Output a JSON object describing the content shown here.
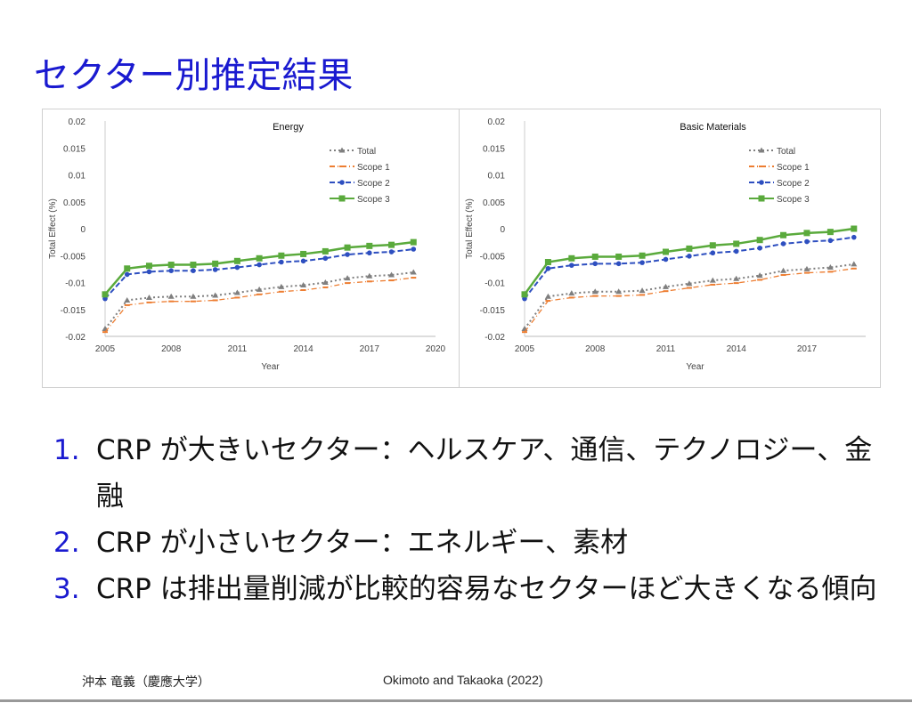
{
  "title": "セクター別推定結果",
  "chart_data": [
    {
      "type": "line",
      "title": "Energy",
      "xlabel": "Year",
      "ylabel": "Total Effect (%)",
      "xlim": [
        2005,
        2020
      ],
      "ylim": [
        -0.02,
        0.02
      ],
      "xticks": [
        "2005",
        "2008",
        "2011",
        "2014",
        "2017",
        "2020"
      ],
      "yticks": [
        "0.02",
        "0.015",
        "0.01",
        "0.005",
        "0",
        "-0.005",
        "-0.01",
        "-0.015",
        "-0.02"
      ],
      "legend_position": "top-right",
      "x": [
        2005,
        2006,
        2007,
        2008,
        2009,
        2010,
        2011,
        2012,
        2013,
        2014,
        2015,
        2016,
        2017,
        2018,
        2019
      ],
      "series": [
        {
          "name": "Total",
          "color": "#7f7f7f",
          "values": [
            -0.0186,
            -0.0133,
            -0.0128,
            -0.0126,
            -0.0126,
            -0.0124,
            -0.0119,
            -0.0113,
            -0.0108,
            -0.0105,
            -0.01,
            -0.0092,
            -0.0088,
            -0.0086,
            -0.0081
          ]
        },
        {
          "name": "Scope 1",
          "color": "#ed7d31",
          "values": [
            -0.0192,
            -0.0142,
            -0.0137,
            -0.0135,
            -0.0135,
            -0.0133,
            -0.0128,
            -0.0122,
            -0.0117,
            -0.0114,
            -0.0109,
            -0.0101,
            -0.0098,
            -0.0096,
            -0.0091
          ]
        },
        {
          "name": "Scope 2",
          "color": "#2e4fc0",
          "values": [
            -0.013,
            -0.0085,
            -0.008,
            -0.0078,
            -0.0078,
            -0.0076,
            -0.0072,
            -0.0067,
            -0.0062,
            -0.006,
            -0.0055,
            -0.0048,
            -0.0045,
            -0.0043,
            -0.0038
          ]
        },
        {
          "name": "Scope 3",
          "color": "#5aaa3c",
          "values": [
            -0.0122,
            -0.0074,
            -0.0069,
            -0.0067,
            -0.0067,
            -0.0065,
            -0.006,
            -0.0055,
            -0.005,
            -0.0047,
            -0.0042,
            -0.0035,
            -0.0032,
            -0.003,
            -0.0025
          ]
        }
      ]
    },
    {
      "type": "line",
      "title": "Basic Materials",
      "xlabel": "Year",
      "ylabel": "Total Effect (%)",
      "xlim": [
        2005,
        2019.5
      ],
      "ylim": [
        -0.02,
        0.02
      ],
      "xticks": [
        "2005",
        "2008",
        "2011",
        "2014",
        "2017"
      ],
      "yticks": [
        "0.02",
        "0.015",
        "0.01",
        "0.005",
        "0",
        "-0.005",
        "-0.01",
        "-0.015",
        "-0.02"
      ],
      "legend_position": "top-right",
      "x": [
        2005,
        2006,
        2007,
        2008,
        2009,
        2010,
        2011,
        2012,
        2013,
        2014,
        2015,
        2016,
        2017,
        2018,
        2019
      ],
      "series": [
        {
          "name": "Total",
          "color": "#7f7f7f",
          "values": [
            -0.0186,
            -0.0126,
            -0.012,
            -0.0117,
            -0.0117,
            -0.0115,
            -0.0108,
            -0.0102,
            -0.0096,
            -0.0093,
            -0.0087,
            -0.0078,
            -0.0075,
            -0.0072,
            -0.0066
          ]
        },
        {
          "name": "Scope 1",
          "color": "#ed7d31",
          "values": [
            -0.0192,
            -0.0134,
            -0.0128,
            -0.0125,
            -0.0125,
            -0.0123,
            -0.0116,
            -0.011,
            -0.0104,
            -0.0101,
            -0.0095,
            -0.0086,
            -0.0082,
            -0.008,
            -0.0074
          ]
        },
        {
          "name": "Scope 2",
          "color": "#2e4fc0",
          "values": [
            -0.013,
            -0.0074,
            -0.0068,
            -0.0065,
            -0.0065,
            -0.0063,
            -0.0057,
            -0.0051,
            -0.0045,
            -0.0042,
            -0.0036,
            -0.0028,
            -0.0024,
            -0.0022,
            -0.0016
          ]
        },
        {
          "name": "Scope 3",
          "color": "#5aaa3c",
          "values": [
            -0.0122,
            -0.0062,
            -0.0055,
            -0.0052,
            -0.0052,
            -0.005,
            -0.0043,
            -0.0037,
            -0.0031,
            -0.0028,
            -0.0021,
            -0.0012,
            -0.0008,
            -0.0006,
            0.0
          ]
        }
      ]
    }
  ],
  "points": [
    {
      "num": "1.",
      "text": "CRP が大きいセクター：ヘルスケア、通信、テクノロジー、金融"
    },
    {
      "num": "2.",
      "text": "CRP が小さいセクター：エネルギー、素材"
    },
    {
      "num": "3.",
      "text": "CRP は排出量削減が比較的容易なセクターほど大きくなる傾向"
    }
  ],
  "footer": {
    "author": "沖本 竜義（慶應大学）",
    "citation": "Okimoto and Takaoka (2022)"
  }
}
